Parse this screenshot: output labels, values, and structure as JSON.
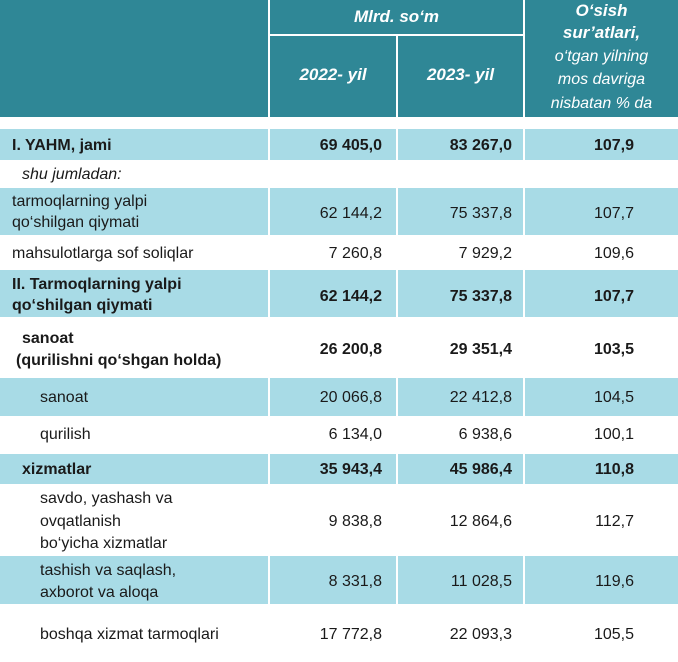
{
  "header": {
    "unit_title": "Mlrd. so‘m",
    "col_2022": "2022- yil",
    "col_2023": "2023- yil",
    "growth_line1": "O‘sish",
    "growth_line2": "sur’atlari,",
    "growth_line3": "o‘tgan yilning",
    "growth_line4": "mos davriga",
    "growth_line5": "nisbatan % da"
  },
  "rows": [
    {
      "label": [
        "I. YAHM, jami"
      ],
      "v2022": "69 405,0",
      "v2023": "83 267,0",
      "growth": "107,9"
    },
    {
      "label": [
        "shu jumladan:"
      ],
      "v2022": "",
      "v2023": "",
      "growth": ""
    },
    {
      "label": [
        "tarmoqlarning yalpi",
        "qo‘shilgan qiymati"
      ],
      "v2022": "62 144,2",
      "v2023": "75 337,8",
      "growth": "107,7"
    },
    {
      "label": [
        "mahsulotlarga sof soliqlar"
      ],
      "v2022": "7 260,8",
      "v2023": "7 929,2",
      "growth": "109,6"
    },
    {
      "label": [
        "II. Tarmoqlarning yalpi",
        "qo‘shilgan qiymati"
      ],
      "v2022": "62 144,2",
      "v2023": "75 337,8",
      "growth": "107,7"
    },
    {
      "label": [
        "sanoat",
        "(qurilishni qo‘shgan holda)"
      ],
      "v2022": "26 200,8",
      "v2023": "29 351,4",
      "growth": "103,5"
    },
    {
      "label": [
        "sanoat"
      ],
      "v2022": "20 066,8",
      "v2023": "22 412,8",
      "growth": "104,5"
    },
    {
      "label": [
        "qurilish"
      ],
      "v2022": "6 134,0",
      "v2023": "6 938,6",
      "growth": "100,1"
    },
    {
      "label": [
        "xizmatlar"
      ],
      "v2022": "35 943,4",
      "v2023": "45 986,4",
      "growth": "110,8"
    },
    {
      "label": [
        "savdo, yashash va",
        "ovqatlanish",
        "bo‘yicha xizmatlar"
      ],
      "v2022": "9 838,8",
      "v2023": "12 864,6",
      "growth": "112,7"
    },
    {
      "label": [
        "tashish va saqlash,",
        "axborot va aloqa"
      ],
      "v2022": "8 331,8",
      "v2023": "11 028,5",
      "growth": "119,6"
    },
    {
      "label": [
        "boshqa xizmat tarmoqlari"
      ],
      "v2022": "17 772,8",
      "v2023": "22 093,3",
      "growth": "105,5"
    }
  ]
}
